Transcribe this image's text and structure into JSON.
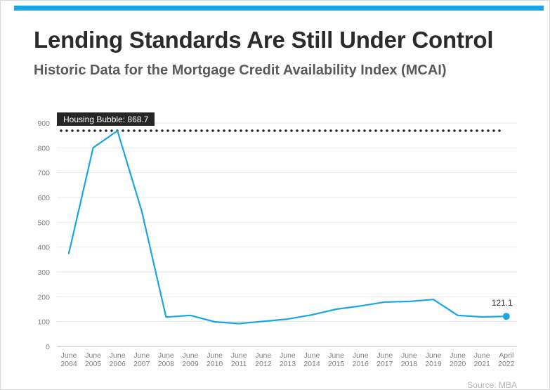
{
  "header": {
    "title": "Lending Standards Are Still Under Control",
    "subtitle": "Historic Data for the Mortgage Credit Availability Index (MCAI)"
  },
  "footer": {
    "source": "Source: MBA"
  },
  "colors": {
    "accent": "#1aa5e6",
    "line": "#1aa5e6",
    "reference": "#222222",
    "callout_bg": "#262626",
    "axis_text": "#7f7f7f",
    "grid": "#e6e6e6"
  },
  "chart_data": {
    "type": "line",
    "title": "Lending Standards Are Still Under Control",
    "subtitle": "Historic Data for the Mortgage Credit Availability Index (MCAI)",
    "xlabel": "",
    "ylabel": "",
    "ylim": [
      0,
      900
    ],
    "yticks": [
      0,
      100,
      200,
      300,
      400,
      500,
      600,
      700,
      800,
      900
    ],
    "grid": true,
    "categories": [
      [
        "June",
        "2004"
      ],
      [
        "June",
        "2005"
      ],
      [
        "June",
        "2006"
      ],
      [
        "June",
        "2007"
      ],
      [
        "June",
        "2008"
      ],
      [
        "June",
        "2009"
      ],
      [
        "June",
        "2010"
      ],
      [
        "June",
        "2011"
      ],
      [
        "June",
        "2012"
      ],
      [
        "June",
        "2013"
      ],
      [
        "June",
        "2014"
      ],
      [
        "June",
        "2015"
      ],
      [
        "June",
        "2016"
      ],
      [
        "June",
        "2017"
      ],
      [
        "June",
        "2018"
      ],
      [
        "June",
        "2019"
      ],
      [
        "June",
        "2020"
      ],
      [
        "June",
        "2021"
      ],
      [
        "April",
        "2022"
      ]
    ],
    "series": [
      {
        "values": [
          375,
          800,
          868.7,
          545,
          118,
          125,
          99,
          92,
          101,
          110,
          127,
          150,
          163,
          179,
          181,
          189,
          125,
          119,
          121.1
        ]
      }
    ],
    "reference_line": {
      "value": 868.7,
      "label": "Housing Bubble: 868.7"
    },
    "end_label": "121.1"
  }
}
